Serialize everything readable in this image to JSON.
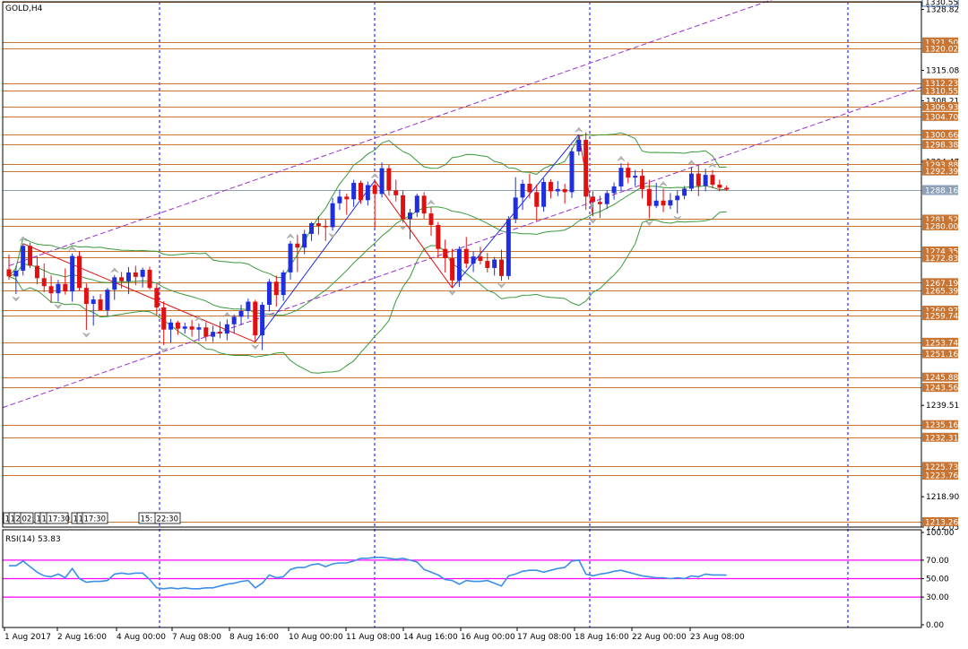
{
  "title": "GOLD,H4",
  "rsi_label": "RSI(14) 53.83",
  "price_axis": {
    "min": 1212.05,
    "max": 1330.55,
    "ticks": [
      "1328.82",
      "1315.08",
      "1308.21",
      "1294.47",
      "1239.51",
      "1218.90",
      "1212.05"
    ],
    "levels": [
      "1330.55",
      "1321.50",
      "1320.02",
      "1312.23",
      "1310.55",
      "1306.93",
      "1304.70",
      "1300.66",
      "1298.38",
      "1293.88",
      "1292.39",
      "1281.52",
      "1280.00",
      "1274.35",
      "1272.83",
      "1267.19",
      "1265.39",
      "1260.97",
      "1259.74",
      "1253.74",
      "1251.16",
      "1245.88",
      "1243.56",
      "1235.16",
      "1232.31",
      "1225.73",
      "1223.76",
      "1213.26"
    ],
    "current": "1288.16"
  },
  "rsi_axis": {
    "ticks": [
      "100.00",
      "70.00",
      "50.00",
      "30.00",
      "0.00"
    ],
    "levels": [
      70,
      50,
      30
    ]
  },
  "x_axis_labels": [
    "1 Aug 2017",
    "2 Aug 16:00",
    "4 Aug 00:00",
    "7 Aug 08:00",
    "8 Aug 16:00",
    "10 Aug 00:00",
    "11 Aug 08:00",
    "14 Aug 16:00",
    "16 Aug 00:00",
    "17 Aug 08:00",
    "18 Aug 16:00",
    "22 Aug 00:00",
    "23 Aug 08:00"
  ],
  "marker_labels": [
    "1",
    "1",
    "2",
    "02:",
    "1",
    "1",
    "17:30",
    "1",
    "1",
    "17:30",
    "15:",
    "22:30"
  ],
  "colors": {
    "bull": "#1f2fe0",
    "bear": "#e01010",
    "level": "#c87533",
    "channel": "#9932cc",
    "bands": "#3a9a3a",
    "rsi": "#3c8fe8",
    "rsi_level": "#ff00ff",
    "separator": "#0000ff",
    "label_bg": "#c87533"
  },
  "chart_data": {
    "type": "candlestick",
    "symbol": "GOLD",
    "timeframe": "H4",
    "ylim": [
      1212.05,
      1330.55
    ],
    "candles": [
      [
        1270.2,
        1273.5,
        1267.8,
        1268.6
      ],
      [
        1268.6,
        1271.0,
        1264.6,
        1269.9
      ],
      [
        1269.9,
        1276.0,
        1268.8,
        1275.5
      ],
      [
        1275.5,
        1276.2,
        1270.5,
        1271.0
      ],
      [
        1271.0,
        1273.2,
        1266.8,
        1268.2
      ],
      [
        1268.2,
        1271.5,
        1265.0,
        1266.4
      ],
      [
        1266.4,
        1268.8,
        1262.6,
        1264.8
      ],
      [
        1264.8,
        1267.8,
        1262.9,
        1266.9
      ],
      [
        1266.9,
        1270.4,
        1264.5,
        1265.2
      ],
      [
        1265.2,
        1273.8,
        1262.9,
        1273.2
      ],
      [
        1273.2,
        1274.3,
        1265.4,
        1266.0
      ],
      [
        1266.0,
        1267.0,
        1256.5,
        1262.4
      ],
      [
        1262.4,
        1264.2,
        1257.5,
        1263.4
      ],
      [
        1263.4,
        1264.6,
        1260.8,
        1261.0
      ],
      [
        1261.0,
        1266.0,
        1259.6,
        1265.6
      ],
      [
        1265.6,
        1268.9,
        1263.3,
        1268.4
      ],
      [
        1268.4,
        1269.6,
        1265.9,
        1267.5
      ],
      [
        1267.5,
        1270.7,
        1264.6,
        1269.5
      ],
      [
        1269.5,
        1271.0,
        1266.6,
        1268.5
      ],
      [
        1268.5,
        1270.6,
        1266.1,
        1270.1
      ],
      [
        1270.1,
        1270.8,
        1265.6,
        1266.0
      ],
      [
        1266.0,
        1266.9,
        1260.0,
        1261.6
      ],
      [
        1261.6,
        1263.0,
        1253.1,
        1256.6
      ],
      [
        1256.6,
        1259.0,
        1253.7,
        1258.2
      ],
      [
        1258.2,
        1258.6,
        1255.4,
        1256.8
      ],
      [
        1256.8,
        1258.2,
        1255.7,
        1257.3
      ],
      [
        1257.3,
        1258.8,
        1255.0,
        1256.6
      ],
      [
        1256.6,
        1258.0,
        1254.0,
        1257.1
      ],
      [
        1257.1,
        1258.3,
        1254.0,
        1255.0
      ],
      [
        1255.0,
        1257.5,
        1253.8,
        1256.1
      ],
      [
        1256.1,
        1258.4,
        1254.7,
        1255.7
      ],
      [
        1255.7,
        1258.9,
        1254.2,
        1257.8
      ],
      [
        1257.8,
        1260.0,
        1255.7,
        1259.5
      ],
      [
        1259.5,
        1262.2,
        1257.6,
        1260.8
      ],
      [
        1260.8,
        1263.6,
        1259.0,
        1262.9
      ],
      [
        1262.9,
        1263.3,
        1253.8,
        1255.3
      ],
      [
        1255.3,
        1262.8,
        1252.0,
        1262.2
      ],
      [
        1262.2,
        1268.0,
        1260.7,
        1267.4
      ],
      [
        1267.4,
        1268.8,
        1261.8,
        1264.4
      ],
      [
        1264.4,
        1270.0,
        1263.1,
        1269.5
      ],
      [
        1269.5,
        1276.6,
        1267.9,
        1276.0
      ],
      [
        1276.0,
        1278.0,
        1269.6,
        1275.1
      ],
      [
        1275.1,
        1279.1,
        1273.6,
        1278.2
      ],
      [
        1278.2,
        1280.9,
        1276.6,
        1280.6
      ],
      [
        1280.6,
        1282.2,
        1278.0,
        1280.0
      ],
      [
        1280.0,
        1281.5,
        1276.6,
        1279.7
      ],
      [
        1279.7,
        1286.3,
        1278.9,
        1285.1
      ],
      [
        1285.1,
        1288.2,
        1283.6,
        1286.6
      ],
      [
        1286.6,
        1287.3,
        1282.5,
        1286.0
      ],
      [
        1286.0,
        1290.4,
        1284.3,
        1289.7
      ],
      [
        1289.7,
        1290.2,
        1285.0,
        1285.8
      ],
      [
        1285.8,
        1290.0,
        1284.6,
        1289.2
      ],
      [
        1289.2,
        1290.2,
        1279.6,
        1287.2
      ],
      [
        1287.2,
        1294.3,
        1286.4,
        1293.0
      ],
      [
        1293.0,
        1293.8,
        1286.8,
        1288.0
      ],
      [
        1288.0,
        1290.4,
        1285.5,
        1286.9
      ],
      [
        1286.9,
        1288.0,
        1280.7,
        1281.5
      ],
      [
        1281.5,
        1283.8,
        1277.0,
        1283.0
      ],
      [
        1283.0,
        1287.3,
        1282.0,
        1286.8
      ],
      [
        1286.8,
        1287.6,
        1281.6,
        1282.8
      ],
      [
        1282.8,
        1284.2,
        1277.8,
        1280.2
      ],
      [
        1280.2,
        1280.9,
        1272.8,
        1274.8
      ],
      [
        1274.8,
        1276.9,
        1269.5,
        1272.7
      ],
      [
        1272.7,
        1274.8,
        1266.0,
        1267.7
      ],
      [
        1267.7,
        1275.4,
        1266.2,
        1274.8
      ],
      [
        1274.8,
        1277.5,
        1270.5,
        1271.5
      ],
      [
        1271.5,
        1274.2,
        1269.6,
        1273.1
      ],
      [
        1273.1,
        1275.3,
        1271.3,
        1272.1
      ],
      [
        1272.1,
        1273.9,
        1269.5,
        1270.5
      ],
      [
        1270.5,
        1273.0,
        1268.8,
        1272.4
      ],
      [
        1272.4,
        1274.6,
        1267.6,
        1268.7
      ],
      [
        1268.7,
        1282.2,
        1267.9,
        1281.5
      ],
      [
        1281.5,
        1291.0,
        1280.6,
        1286.4
      ],
      [
        1286.4,
        1290.4,
        1283.6,
        1289.5
      ],
      [
        1289.5,
        1291.8,
        1286.2,
        1287.6
      ],
      [
        1287.6,
        1289.3,
        1281.1,
        1284.3
      ],
      [
        1284.3,
        1290.7,
        1283.2,
        1289.9
      ],
      [
        1289.9,
        1290.5,
        1286.2,
        1287.8
      ],
      [
        1287.8,
        1290.1,
        1286.7,
        1288.3
      ],
      [
        1288.3,
        1289.5,
        1285.0,
        1287.6
      ],
      [
        1287.6,
        1297.6,
        1286.3,
        1296.8
      ],
      [
        1296.8,
        1300.6,
        1295.9,
        1299.4
      ],
      [
        1299.4,
        1301.1,
        1283.6,
        1286.6
      ],
      [
        1286.6,
        1287.8,
        1282.2,
        1285.4
      ],
      [
        1285.4,
        1286.8,
        1281.8,
        1284.9
      ],
      [
        1284.9,
        1288.0,
        1283.8,
        1287.4
      ],
      [
        1287.4,
        1289.8,
        1285.9,
        1288.9
      ],
      [
        1288.9,
        1294.1,
        1287.9,
        1293.1
      ],
      [
        1293.1,
        1294.3,
        1289.6,
        1290.9
      ],
      [
        1290.9,
        1292.6,
        1289.0,
        1291.3
      ],
      [
        1291.3,
        1292.8,
        1286.2,
        1288.3
      ],
      [
        1288.3,
        1290.4,
        1281.7,
        1284.5
      ],
      [
        1284.5,
        1289.7,
        1284.0,
        1285.7
      ],
      [
        1285.7,
        1288.4,
        1283.1,
        1284.6
      ],
      [
        1284.6,
        1287.4,
        1283.8,
        1285.8
      ],
      [
        1285.8,
        1288.0,
        1282.8,
        1286.8
      ],
      [
        1286.8,
        1289.0,
        1286.0,
        1288.4
      ],
      [
        1288.4,
        1293.2,
        1287.8,
        1291.8
      ],
      [
        1291.8,
        1293.6,
        1286.7,
        1289.0
      ],
      [
        1289.0,
        1292.9,
        1287.8,
        1291.5
      ],
      [
        1291.5,
        1292.6,
        1288.5,
        1289.3
      ],
      [
        1289.3,
        1290.4,
        1287.8,
        1288.6
      ],
      [
        1288.6,
        1289.1,
        1287.9,
        1288.2
      ]
    ],
    "rsi_values": [
      64,
      64,
      69,
      63,
      57,
      53,
      52,
      55,
      51,
      61,
      50,
      46,
      47,
      47,
      48,
      55,
      56,
      55,
      56,
      56,
      49,
      40,
      39,
      40,
      39,
      40,
      39,
      39,
      40,
      40,
      42,
      44,
      45,
      47,
      48,
      40,
      45,
      54,
      51,
      52,
      60,
      62,
      62,
      65,
      66,
      63,
      66,
      67,
      67,
      69,
      72,
      72,
      73,
      73,
      72,
      71,
      72,
      70,
      68,
      60,
      57,
      54,
      49,
      48,
      44,
      48,
      47,
      47,
      48,
      45,
      42,
      53,
      55,
      58,
      59,
      59,
      57,
      59,
      61,
      62,
      69,
      70,
      55,
      53,
      55,
      56,
      58,
      59,
      57,
      55,
      53,
      52,
      51,
      51,
      50,
      51,
      50,
      53,
      52,
      55,
      54,
      54,
      53.83
    ],
    "rsi_ylim": [
      0,
      100
    ],
    "x_labels": [
      "1 Aug 2017",
      "2 Aug 16:00",
      "4 Aug 00:00",
      "7 Aug 08:00",
      "8 Aug 16:00",
      "10 Aug 00:00",
      "11 Aug 08:00",
      "14 Aug 16:00",
      "16 Aug 00:00",
      "17 Aug 08:00",
      "18 Aug 16:00",
      "22 Aug 00:00",
      "23 Aug 08:00"
    ],
    "grid": false
  }
}
